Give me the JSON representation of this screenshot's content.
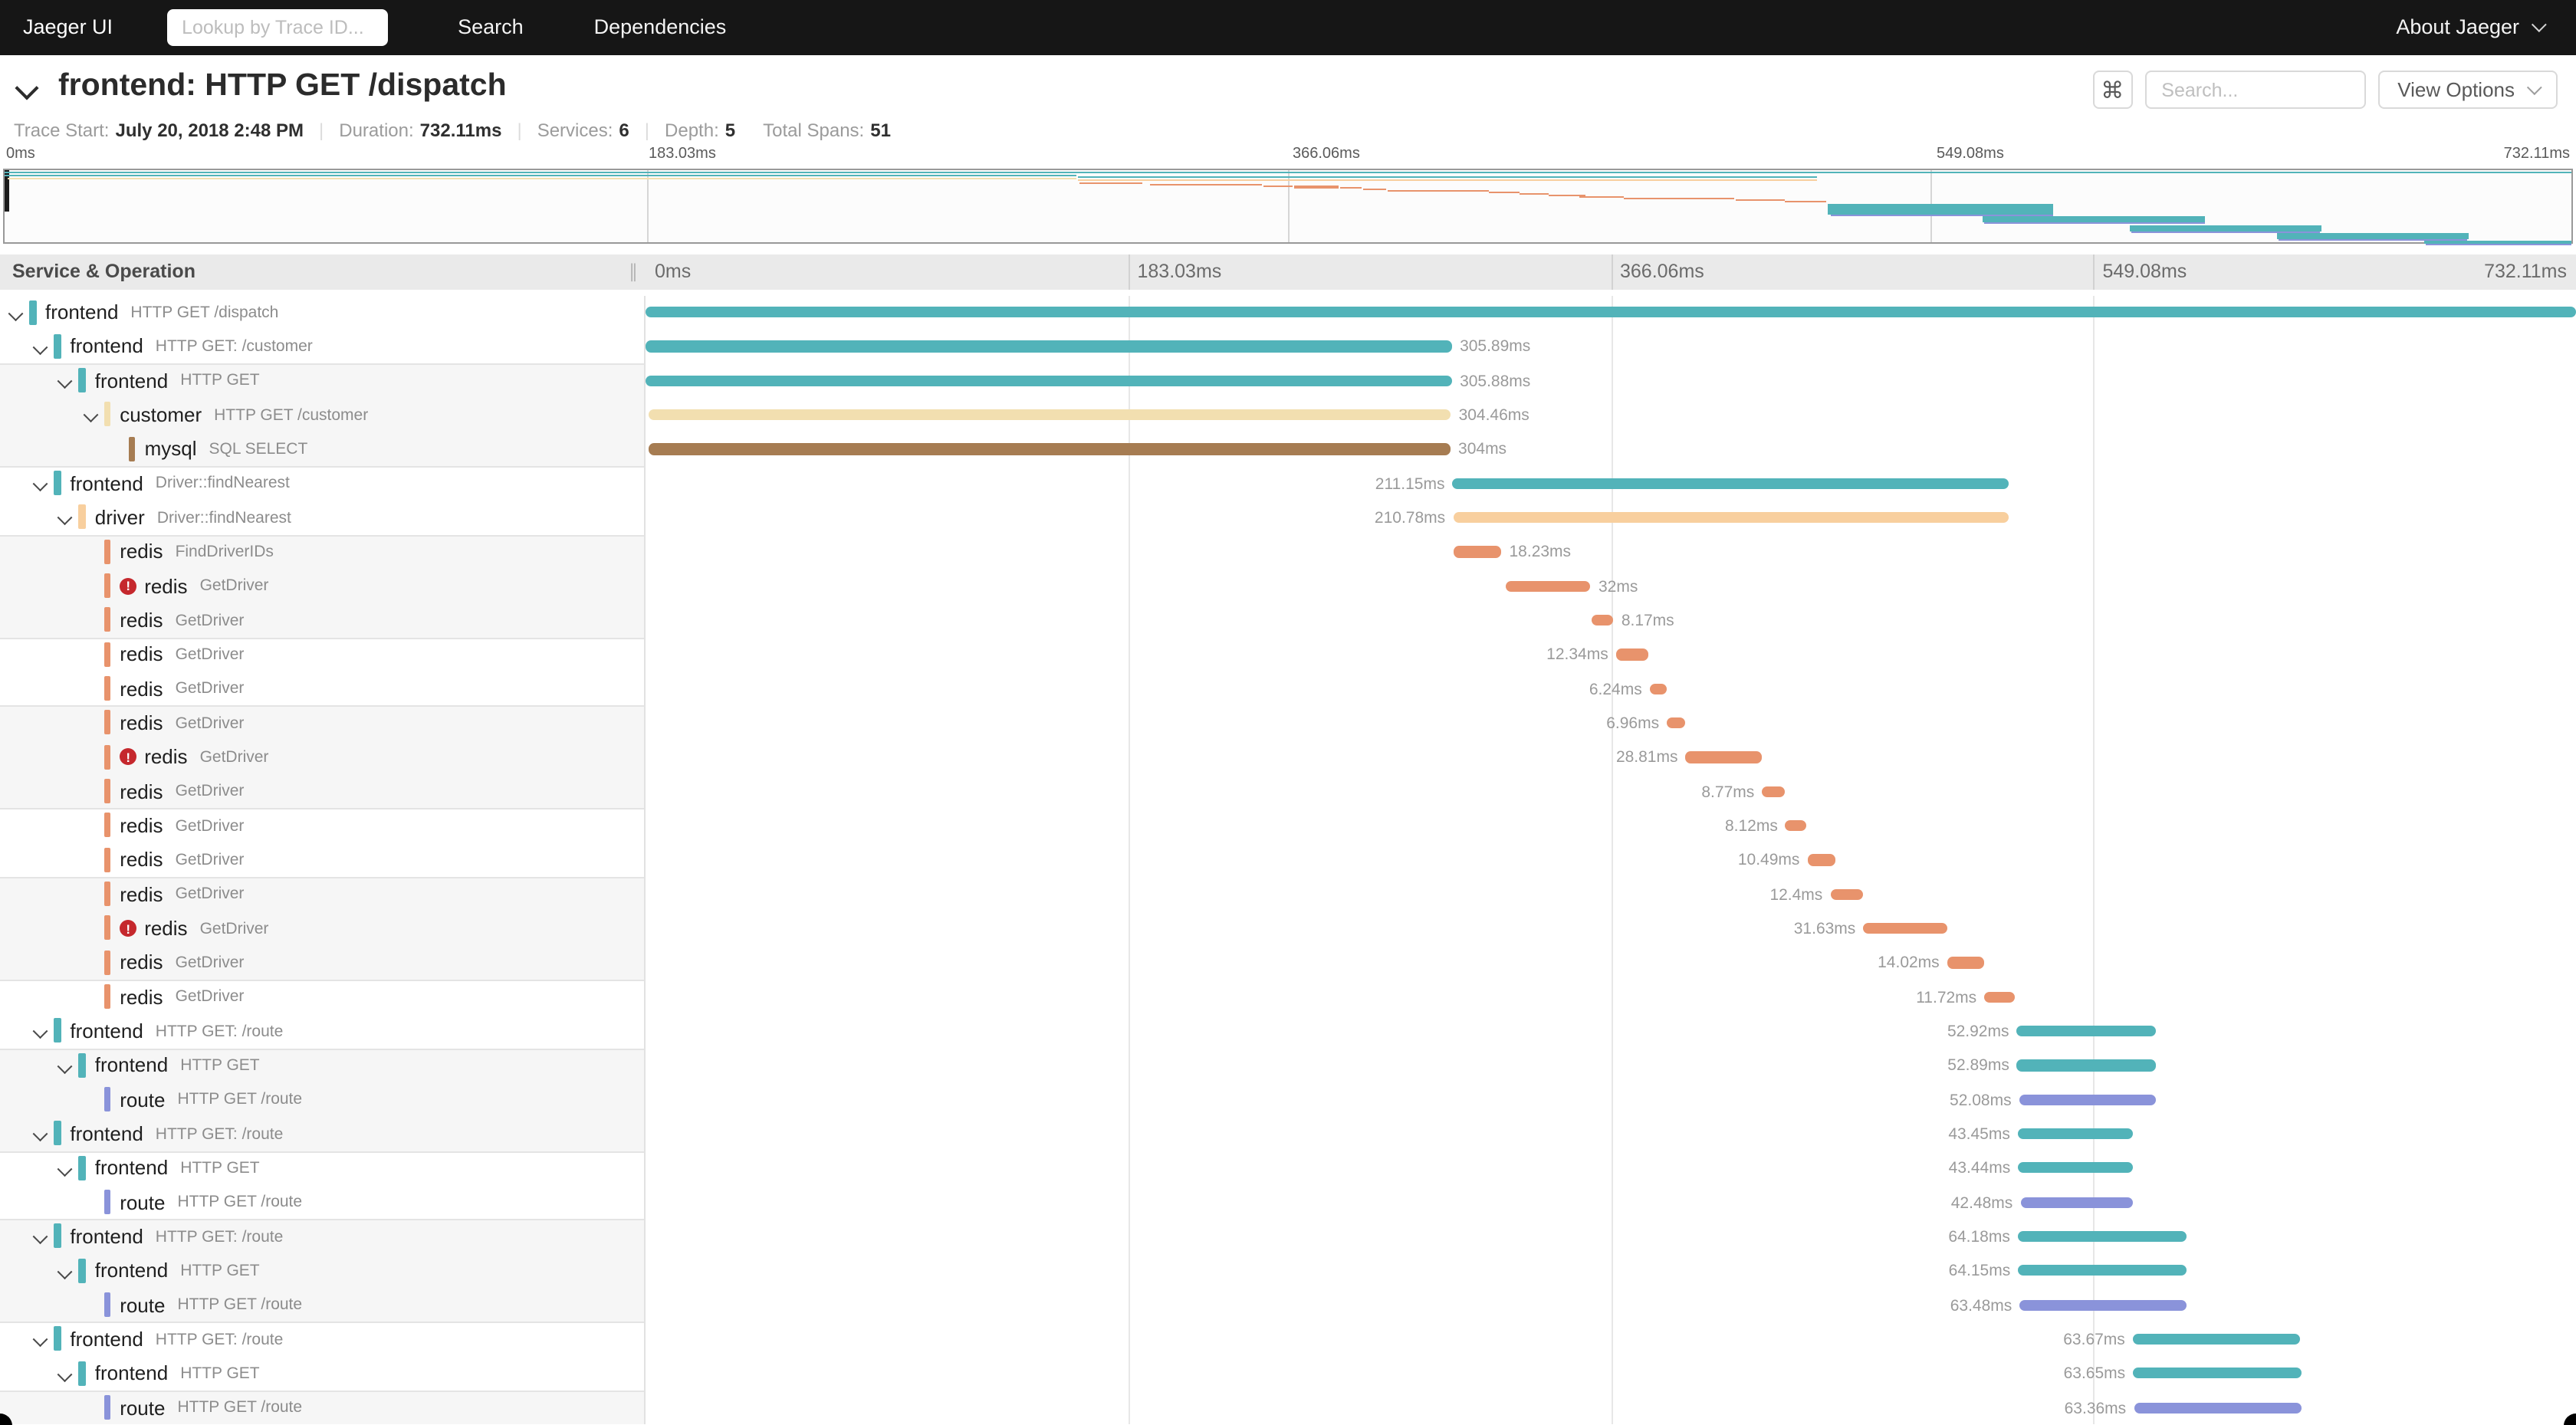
{
  "nav": {
    "brand": "Jaeger UI",
    "trace_lookup_placeholder": "Lookup by Trace ID...",
    "items": [
      "Search",
      "Dependencies"
    ],
    "right_item": "About Jaeger"
  },
  "trace_header": {
    "title": "frontend: HTTP GET /dispatch",
    "shortcut_button": "⌘",
    "search_placeholder": "Search...",
    "view_options_label": "View Options"
  },
  "trace_info": {
    "items": [
      {
        "label": "Trace Start:",
        "value": "July 20, 2018 2:48 PM"
      },
      {
        "label": "Duration:",
        "value": "732.11ms"
      },
      {
        "label": "Services:",
        "value": "6"
      },
      {
        "label": "Depth:",
        "value": "5"
      },
      {
        "label": "Total Spans:",
        "value": "51"
      }
    ]
  },
  "timeline": {
    "total_ms": 732.11,
    "ticks": [
      "0ms",
      "183.03ms",
      "366.06ms",
      "549.08ms",
      "732.11ms"
    ],
    "header_label": "Service & Operation",
    "resizer_glyph": "∥"
  },
  "palette": {
    "frontend": "#52b3b9",
    "customer": "#f2dfb0",
    "mysql": "#a67c52",
    "driver": "#f8cf9e",
    "redis": "#e8936c",
    "route": "#8a93da",
    "error": "#c5282d"
  },
  "minimap": {
    "segments": [
      {
        "s": 0,
        "d": 732.11,
        "y": 0.5,
        "h": 1.6,
        "c": "frontend"
      },
      {
        "s": 0,
        "d": 305.9,
        "y": 2.6,
        "h": 1.7,
        "c": "frontend"
      },
      {
        "s": 0.7,
        "d": 304.8,
        "y": 4.5,
        "h": 1.3,
        "c": "customer"
      },
      {
        "s": 306,
        "d": 211.15,
        "y": 4.2,
        "h": 1.3,
        "c": "frontend"
      },
      {
        "s": 306.2,
        "d": 210.78,
        "y": 5.9,
        "h": 1.3,
        "c": "driver"
      },
      {
        "s": 306.4,
        "d": 18.23,
        "y": 7.6,
        "h": 1.1,
        "c": "redis"
      },
      {
        "s": 326.5,
        "d": 32,
        "y": 8.55,
        "h": 1.1,
        "c": "redis"
      },
      {
        "s": 359,
        "d": 8.17,
        "y": 9.5,
        "h": 1.1,
        "c": "redis"
      },
      {
        "s": 368,
        "d": 12.34,
        "y": 10.45,
        "h": 1.1,
        "c": "redis"
      },
      {
        "s": 380.8,
        "d": 6.24,
        "y": 11.4,
        "h": 1.1,
        "c": "redis"
      },
      {
        "s": 387.3,
        "d": 6.96,
        "y": 12.35,
        "h": 1.1,
        "c": "redis"
      },
      {
        "s": 394.4,
        "d": 28.81,
        "y": 13.3,
        "h": 1.1,
        "c": "redis"
      },
      {
        "s": 423.4,
        "d": 8.77,
        "y": 14.25,
        "h": 1.1,
        "c": "redis"
      },
      {
        "s": 432.3,
        "d": 8.12,
        "y": 15.2,
        "h": 1.1,
        "c": "redis"
      },
      {
        "s": 440.6,
        "d": 10.49,
        "y": 16.15,
        "h": 1.1,
        "c": "redis"
      },
      {
        "s": 449.3,
        "d": 12.4,
        "y": 17.1,
        "h": 1.1,
        "c": "redis"
      },
      {
        "s": 461.8,
        "d": 31.63,
        "y": 18.05,
        "h": 1.1,
        "c": "redis"
      },
      {
        "s": 493.6,
        "d": 14.02,
        "y": 19,
        "h": 1.1,
        "c": "redis"
      },
      {
        "s": 507.7,
        "d": 11.72,
        "y": 19.95,
        "h": 1.1,
        "c": "redis"
      },
      {
        "s": 520,
        "d": 64.2,
        "y": 21.5,
        "h": 7.4,
        "c": "frontend"
      },
      {
        "s": 520.9,
        "d": 63.5,
        "y": 28.9,
        "h": 1.4,
        "c": "route"
      },
      {
        "s": 564,
        "d": 63.7,
        "y": 30.3,
        "h": 4,
        "c": "frontend"
      },
      {
        "s": 564.4,
        "d": 63.4,
        "y": 34.3,
        "h": 1.2,
        "c": "route"
      },
      {
        "s": 606,
        "d": 55,
        "y": 35.5,
        "h": 4,
        "c": "frontend"
      },
      {
        "s": 606.5,
        "d": 54,
        "y": 39.5,
        "h": 1.2,
        "c": "route"
      },
      {
        "s": 648,
        "d": 55,
        "y": 40.7,
        "h": 4,
        "c": "frontend"
      },
      {
        "s": 648.5,
        "d": 54,
        "y": 44.7,
        "h": 1.2,
        "c": "route"
      },
      {
        "s": 690,
        "d": 42.1,
        "y": 45.9,
        "h": 2.4,
        "c": "frontend"
      },
      {
        "s": 690.5,
        "d": 41.6,
        "y": 48.3,
        "h": 0.7,
        "c": "route"
      }
    ]
  },
  "spans": [
    {
      "service": "frontend",
      "operation": "HTTP GET /dispatch",
      "level": 0,
      "children": true,
      "error": false,
      "start_ms": 0,
      "duration_ms": 732.11,
      "duration_label": "",
      "label_side": "none",
      "shaded": false,
      "divider": false
    },
    {
      "service": "frontend",
      "operation": "HTTP GET: /customer",
      "level": 1,
      "children": true,
      "error": false,
      "start_ms": 0,
      "duration_ms": 305.89,
      "duration_label": "305.89ms",
      "label_side": "right",
      "shaded": false,
      "divider": false
    },
    {
      "service": "frontend",
      "operation": "HTTP GET",
      "level": 2,
      "children": true,
      "error": false,
      "start_ms": 0.01,
      "duration_ms": 305.88,
      "duration_label": "305.88ms",
      "label_side": "right",
      "shaded": true,
      "divider": true
    },
    {
      "service": "customer",
      "operation": "HTTP GET /customer",
      "level": 3,
      "children": true,
      "error": false,
      "start_ms": 1.0,
      "duration_ms": 304.46,
      "duration_label": "304.46ms",
      "label_side": "right",
      "shaded": true,
      "divider": false
    },
    {
      "service": "mysql",
      "operation": "SQL SELECT",
      "level": 4,
      "children": false,
      "error": false,
      "start_ms": 1.3,
      "duration_ms": 304,
      "duration_label": "304ms",
      "label_side": "right",
      "shaded": true,
      "divider": false
    },
    {
      "service": "frontend",
      "operation": "Driver::findNearest",
      "level": 1,
      "children": true,
      "error": false,
      "start_ms": 306.0,
      "duration_ms": 211.15,
      "duration_label": "211.15ms",
      "label_side": "left",
      "shaded": false,
      "divider": true
    },
    {
      "service": "driver",
      "operation": "Driver::findNearest",
      "level": 2,
      "children": true,
      "error": false,
      "start_ms": 306.2,
      "duration_ms": 210.78,
      "duration_label": "210.78ms",
      "label_side": "left",
      "shaded": false,
      "divider": false
    },
    {
      "service": "redis",
      "operation": "FindDriverIDs",
      "level": 3,
      "children": false,
      "error": false,
      "start_ms": 306.4,
      "duration_ms": 18.23,
      "duration_label": "18.23ms",
      "label_side": "right",
      "shaded": true,
      "divider": true
    },
    {
      "service": "redis",
      "operation": "GetDriver",
      "level": 3,
      "children": false,
      "error": true,
      "start_ms": 326.5,
      "duration_ms": 32,
      "duration_label": "32ms",
      "label_side": "right",
      "shaded": true,
      "divider": false
    },
    {
      "service": "redis",
      "operation": "GetDriver",
      "level": 3,
      "children": false,
      "error": false,
      "start_ms": 359.0,
      "duration_ms": 8.17,
      "duration_label": "8.17ms",
      "label_side": "right",
      "shaded": true,
      "divider": false
    },
    {
      "service": "redis",
      "operation": "GetDriver",
      "level": 3,
      "children": false,
      "error": false,
      "start_ms": 368.0,
      "duration_ms": 12.34,
      "duration_label": "12.34ms",
      "label_side": "left",
      "shaded": false,
      "divider": true
    },
    {
      "service": "redis",
      "operation": "GetDriver",
      "level": 3,
      "children": false,
      "error": false,
      "start_ms": 380.8,
      "duration_ms": 6.24,
      "duration_label": "6.24ms",
      "label_side": "left",
      "shaded": false,
      "divider": false
    },
    {
      "service": "redis",
      "operation": "GetDriver",
      "level": 3,
      "children": false,
      "error": false,
      "start_ms": 387.3,
      "duration_ms": 6.96,
      "duration_label": "6.96ms",
      "label_side": "left",
      "shaded": true,
      "divider": true
    },
    {
      "service": "redis",
      "operation": "GetDriver",
      "level": 3,
      "children": false,
      "error": true,
      "start_ms": 394.4,
      "duration_ms": 28.81,
      "duration_label": "28.81ms",
      "label_side": "left",
      "shaded": true,
      "divider": false
    },
    {
      "service": "redis",
      "operation": "GetDriver",
      "level": 3,
      "children": false,
      "error": false,
      "start_ms": 423.4,
      "duration_ms": 8.77,
      "duration_label": "8.77ms",
      "label_side": "left",
      "shaded": true,
      "divider": false
    },
    {
      "service": "redis",
      "operation": "GetDriver",
      "level": 3,
      "children": false,
      "error": false,
      "start_ms": 432.3,
      "duration_ms": 8.12,
      "duration_label": "8.12ms",
      "label_side": "left",
      "shaded": false,
      "divider": true
    },
    {
      "service": "redis",
      "operation": "GetDriver",
      "level": 3,
      "children": false,
      "error": false,
      "start_ms": 440.6,
      "duration_ms": 10.49,
      "duration_label": "10.49ms",
      "label_side": "left",
      "shaded": false,
      "divider": false
    },
    {
      "service": "redis",
      "operation": "GetDriver",
      "level": 3,
      "children": false,
      "error": false,
      "start_ms": 449.3,
      "duration_ms": 12.4,
      "duration_label": "12.4ms",
      "label_side": "left",
      "shaded": true,
      "divider": true
    },
    {
      "service": "redis",
      "operation": "GetDriver",
      "level": 3,
      "children": false,
      "error": true,
      "start_ms": 461.8,
      "duration_ms": 31.63,
      "duration_label": "31.63ms",
      "label_side": "left",
      "shaded": true,
      "divider": false
    },
    {
      "service": "redis",
      "operation": "GetDriver",
      "level": 3,
      "children": false,
      "error": false,
      "start_ms": 493.6,
      "duration_ms": 14.02,
      "duration_label": "14.02ms",
      "label_side": "left",
      "shaded": true,
      "divider": false
    },
    {
      "service": "redis",
      "operation": "GetDriver",
      "level": 3,
      "children": false,
      "error": false,
      "start_ms": 507.7,
      "duration_ms": 11.72,
      "duration_label": "11.72ms",
      "label_side": "left",
      "shaded": false,
      "divider": true
    },
    {
      "service": "frontend",
      "operation": "HTTP GET: /route",
      "level": 1,
      "children": true,
      "error": false,
      "start_ms": 520.0,
      "duration_ms": 52.92,
      "duration_label": "52.92ms",
      "label_side": "left",
      "shaded": false,
      "divider": false
    },
    {
      "service": "frontend",
      "operation": "HTTP GET",
      "level": 2,
      "children": true,
      "error": false,
      "start_ms": 520.1,
      "duration_ms": 52.89,
      "duration_label": "52.89ms",
      "label_side": "left",
      "shaded": true,
      "divider": true
    },
    {
      "service": "route",
      "operation": "HTTP GET /route",
      "level": 3,
      "children": false,
      "error": false,
      "start_ms": 520.9,
      "duration_ms": 52.08,
      "duration_label": "52.08ms",
      "label_side": "left",
      "shaded": true,
      "divider": false
    },
    {
      "service": "frontend",
      "operation": "HTTP GET: /route",
      "level": 1,
      "children": true,
      "error": false,
      "start_ms": 520.4,
      "duration_ms": 43.45,
      "duration_label": "43.45ms",
      "label_side": "left",
      "shaded": true,
      "divider": false
    },
    {
      "service": "frontend",
      "operation": "HTTP GET",
      "level": 2,
      "children": true,
      "error": false,
      "start_ms": 520.5,
      "duration_ms": 43.44,
      "duration_label": "43.44ms",
      "label_side": "left",
      "shaded": false,
      "divider": true
    },
    {
      "service": "route",
      "operation": "HTTP GET /route",
      "level": 3,
      "children": false,
      "error": false,
      "start_ms": 521.4,
      "duration_ms": 42.48,
      "duration_label": "42.48ms",
      "label_side": "left",
      "shaded": false,
      "divider": false
    },
    {
      "service": "frontend",
      "operation": "HTTP GET: /route",
      "level": 1,
      "children": true,
      "error": false,
      "start_ms": 520.4,
      "duration_ms": 64.18,
      "duration_label": "64.18ms",
      "label_side": "left",
      "shaded": true,
      "divider": true
    },
    {
      "service": "frontend",
      "operation": "HTTP GET",
      "level": 2,
      "children": true,
      "error": false,
      "start_ms": 520.5,
      "duration_ms": 64.15,
      "duration_label": "64.15ms",
      "label_side": "left",
      "shaded": true,
      "divider": false
    },
    {
      "service": "route",
      "operation": "HTTP GET /route",
      "level": 3,
      "children": false,
      "error": false,
      "start_ms": 521.1,
      "duration_ms": 63.48,
      "duration_label": "63.48ms",
      "label_side": "left",
      "shaded": true,
      "divider": false
    },
    {
      "service": "frontend",
      "operation": "HTTP GET: /route",
      "level": 1,
      "children": true,
      "error": false,
      "start_ms": 564.0,
      "duration_ms": 63.67,
      "duration_label": "63.67ms",
      "label_side": "left",
      "shaded": false,
      "divider": true
    },
    {
      "service": "frontend",
      "operation": "HTTP GET",
      "level": 2,
      "children": true,
      "error": false,
      "start_ms": 564.1,
      "duration_ms": 63.65,
      "duration_label": "63.65ms",
      "label_side": "left",
      "shaded": false,
      "divider": false
    },
    {
      "service": "route",
      "operation": "HTTP GET /route",
      "level": 3,
      "children": false,
      "error": false,
      "start_ms": 564.4,
      "duration_ms": 63.36,
      "duration_label": "63.36ms",
      "label_side": "left",
      "shaded": true,
      "divider": true
    }
  ]
}
